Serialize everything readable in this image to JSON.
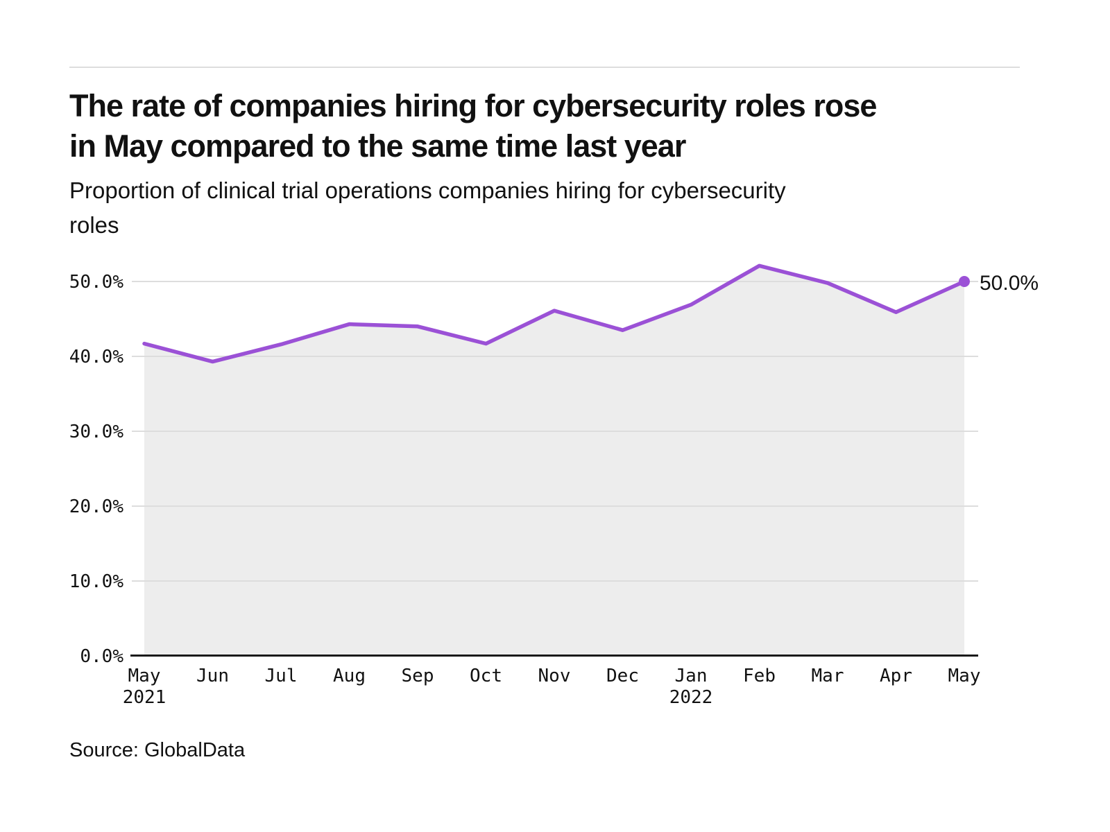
{
  "page": {
    "title": "The rate of companies hiring for cybersecurity roles rose\nin May compared to the same time last year",
    "subtitle": "Proportion of clinical trial operations companies hiring for cybersecurity\nroles",
    "source": "Source: GlobalData"
  },
  "chart_data": {
    "type": "area",
    "title": "Proportion of clinical trial operations companies hiring for cybersecurity roles",
    "categories": [
      {
        "month": "May",
        "year": "2021"
      },
      {
        "month": "Jun"
      },
      {
        "month": "Jul"
      },
      {
        "month": "Aug"
      },
      {
        "month": "Sep"
      },
      {
        "month": "Oct"
      },
      {
        "month": "Nov"
      },
      {
        "month": "Dec"
      },
      {
        "month": "Jan",
        "year": "2022"
      },
      {
        "month": "Feb"
      },
      {
        "month": "Mar"
      },
      {
        "month": "Apr"
      },
      {
        "month": "May"
      }
    ],
    "values": [
      41.7,
      39.3,
      41.6,
      44.3,
      44.0,
      41.7,
      46.1,
      43.5,
      46.9,
      52.1,
      49.8,
      45.9,
      50.0
    ],
    "end_point_label": "50.0%",
    "xlabel": "",
    "ylabel": "",
    "ylim": [
      0,
      55
    ],
    "yticks": [
      0,
      10,
      20,
      30,
      40,
      50
    ],
    "ytick_labels": [
      "0.0%",
      "10.0%",
      "20.0%",
      "30.0%",
      "40.0%",
      "50.0%"
    ],
    "grid": true,
    "legend_position": "none",
    "colors": {
      "line": "#9B51D6",
      "marker": "#9B51D6",
      "area_fill": "#EDEDED",
      "gridline": "#DDDDDD",
      "axis_line": "#1A1A1A",
      "text": "#111111"
    }
  }
}
